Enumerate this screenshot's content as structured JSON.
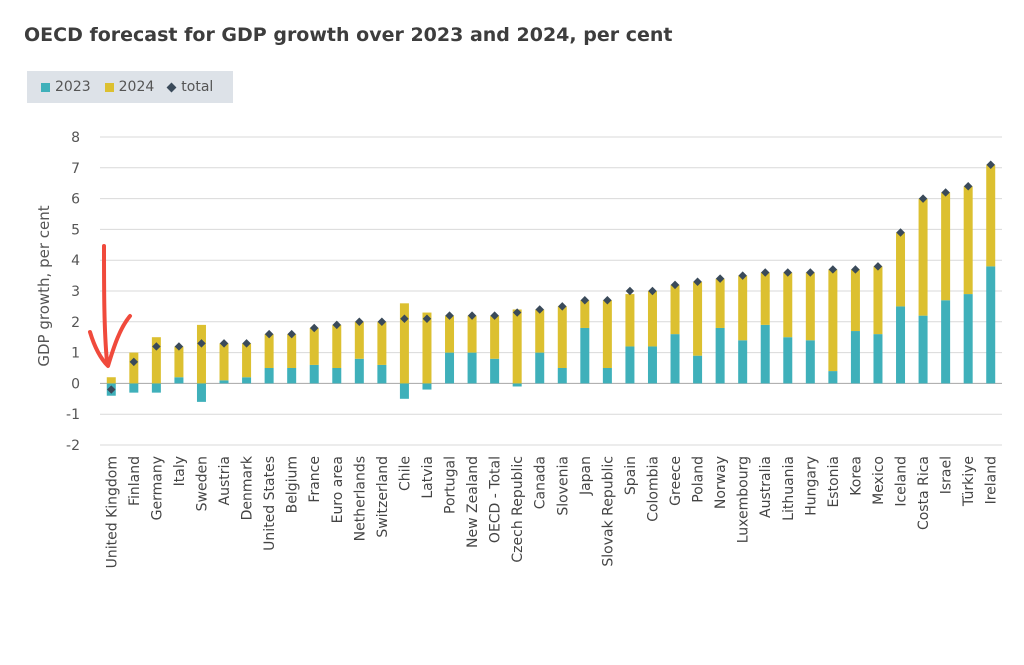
{
  "title": "OECD forecast for GDP growth over 2023 and 2024, per cent",
  "colors": {
    "y2023": "#3fb0ba",
    "y2024": "#dcc030",
    "total": "#3a4a5a",
    "annotation": "#f04a3c",
    "grid": "#d9d9d9"
  },
  "legend": {
    "series_2023": "2023",
    "series_2024": "2024",
    "series_total": "total"
  },
  "chart_data": {
    "type": "bar",
    "stacked": true,
    "title": "OECD forecast for GDP growth over 2023 and 2024, per cent",
    "ylabel": "GDP growth, per cent",
    "xlabel": "",
    "ylim": [
      -2,
      8
    ],
    "yticks": [
      -2,
      -1,
      0,
      1,
      2,
      3,
      4,
      5,
      6,
      7,
      8
    ],
    "grid": true,
    "legend_position": "top-left",
    "categories": [
      "United Kingdom",
      "Finland",
      "Germany",
      "Italy",
      "Sweden",
      "Austria",
      "Denmark",
      "United States",
      "Belgium",
      "France",
      "Euro area",
      "Netherlands",
      "Switzerland",
      "Chile",
      "Latvia",
      "Portugal",
      "New Zealand",
      "OECD - Total",
      "Czech Republic",
      "Canada",
      "Slovenia",
      "Japan",
      "Slovak Republic",
      "Spain",
      "Colombia",
      "Greece",
      "Poland",
      "Norway",
      "Luxembourg",
      "Australia",
      "Lithuania",
      "Hungary",
      "Estonia",
      "Korea",
      "Mexico",
      "Iceland",
      "Costa Rica",
      "Israel",
      "Türkiye",
      "Ireland"
    ],
    "series": [
      {
        "name": "2023",
        "values": [
          -0.4,
          -0.3,
          -0.3,
          0.2,
          -0.6,
          0.1,
          0.2,
          0.5,
          0.5,
          0.6,
          0.5,
          0.8,
          0.6,
          -0.5,
          -0.2,
          1.0,
          1.0,
          0.8,
          -0.1,
          1.0,
          0.5,
          1.8,
          0.5,
          1.2,
          1.2,
          1.6,
          0.9,
          1.8,
          1.4,
          1.9,
          1.5,
          1.4,
          0.4,
          1.7,
          1.6,
          2.5,
          2.2,
          2.7,
          2.9,
          3.8
        ]
      },
      {
        "name": "2024",
        "values": [
          0.2,
          1.0,
          1.5,
          1.0,
          1.9,
          1.2,
          1.1,
          1.1,
          1.1,
          1.2,
          1.4,
          1.2,
          1.4,
          2.6,
          2.3,
          1.2,
          1.2,
          1.4,
          2.4,
          1.4,
          2.0,
          0.9,
          2.2,
          1.7,
          1.8,
          1.6,
          2.4,
          1.6,
          2.1,
          1.7,
          2.1,
          2.2,
          3.3,
          2.0,
          2.2,
          2.4,
          3.8,
          3.5,
          3.5,
          3.3
        ]
      },
      {
        "name": "total",
        "values": [
          -0.2,
          0.7,
          1.2,
          1.2,
          1.3,
          1.3,
          1.3,
          1.6,
          1.6,
          1.8,
          1.9,
          2.0,
          2.0,
          2.1,
          2.1,
          2.2,
          2.2,
          2.2,
          2.3,
          2.4,
          2.5,
          2.7,
          2.7,
          3.0,
          3.0,
          3.2,
          3.3,
          3.4,
          3.5,
          3.6,
          3.6,
          3.6,
          3.7,
          3.7,
          3.8,
          4.9,
          6.0,
          6.2,
          6.4,
          7.1
        ]
      }
    ]
  }
}
